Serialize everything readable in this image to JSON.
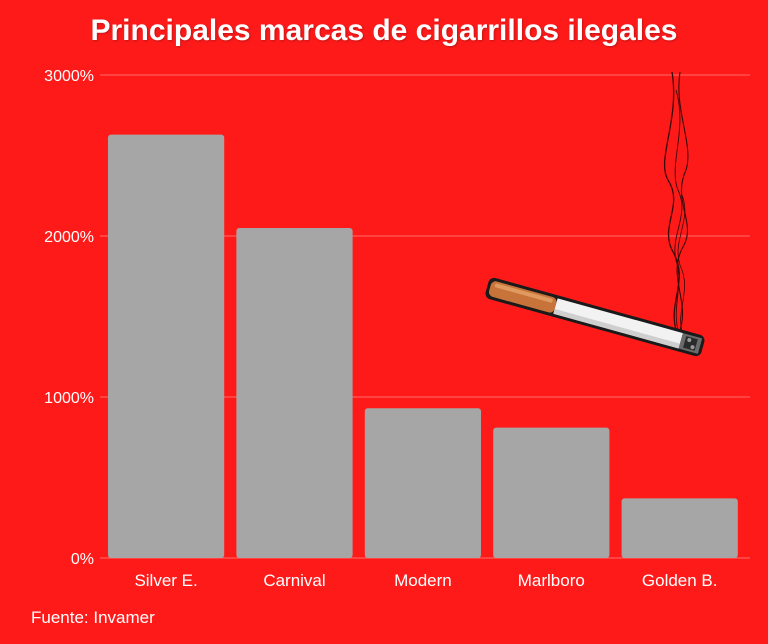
{
  "title": "Principales marcas de cigarrillos ilegales",
  "source": "Fuente: Invamer",
  "colors": {
    "background": "#ff1a1a",
    "bar": "#a6a6a6",
    "text": "#ffffff",
    "grid": "#ff6a6a"
  },
  "illustration": {
    "icon": "cigarette-icon"
  },
  "chart_data": {
    "type": "bar",
    "categories": [
      "Silver E.",
      "Carnival",
      "Modern",
      "Marlboro",
      "Golden B."
    ],
    "values": [
      2630,
      2050,
      930,
      810,
      370
    ],
    "title": "Principales marcas de cigarrillos ilegales",
    "xlabel": "",
    "ylabel": "",
    "ylim": [
      0,
      3000
    ],
    "yticks": [
      0,
      1000,
      2000,
      3000
    ],
    "ytick_labels": [
      "0%",
      "1000%",
      "2000%",
      "3000%"
    ],
    "grid": true,
    "legend": "none"
  }
}
